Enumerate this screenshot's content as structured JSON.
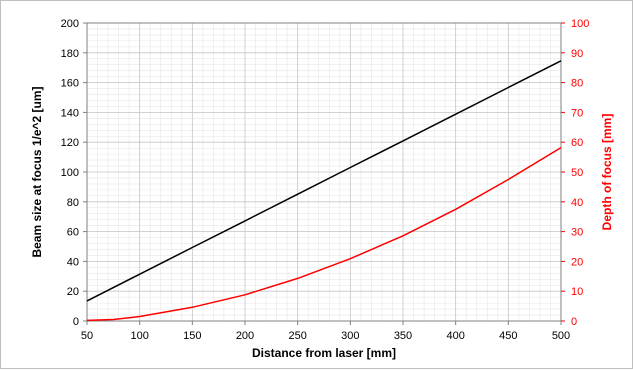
{
  "chart_data": {
    "type": "line",
    "xlabel": "Distance from laser [mm]",
    "ylabel_left": "Beam size at focus 1/e^2 [um]",
    "ylabel_right": "Depth of focus [mm]",
    "xlim": [
      50,
      500
    ],
    "ylim_left": [
      0,
      200
    ],
    "ylim_right": [
      0,
      100
    ],
    "x_ticks": [
      "50",
      "100",
      "150",
      "200",
      "250",
      "300",
      "350",
      "400",
      "450",
      "500"
    ],
    "y_left_ticks": [
      "0",
      "20",
      "40",
      "60",
      "80",
      "100",
      "120",
      "140",
      "160",
      "180",
      "200"
    ],
    "y_right_ticks": [
      "0",
      "10",
      "20",
      "30",
      "40",
      "50",
      "60",
      "70",
      "80",
      "90",
      "100"
    ],
    "grid": true,
    "legend": "none",
    "series": [
      {
        "axis": "left",
        "color": "#000000",
        "x": [
          50,
          100,
          150,
          200,
          250,
          300,
          350,
          400,
          450,
          500
        ],
        "y": [
          13.5,
          31.4,
          49.3,
          67.2,
          85.1,
          103.0,
          120.9,
          138.8,
          156.7,
          174.6
        ]
      },
      {
        "axis": "right",
        "color": "#ff0000",
        "x": [
          50,
          75,
          100,
          150,
          200,
          250,
          300,
          350,
          400,
          450,
          500
        ],
        "y": [
          0.2,
          0.5,
          1.5,
          4.6,
          8.8,
          14.3,
          20.9,
          28.6,
          37.5,
          47.5,
          58.2
        ]
      }
    ]
  }
}
